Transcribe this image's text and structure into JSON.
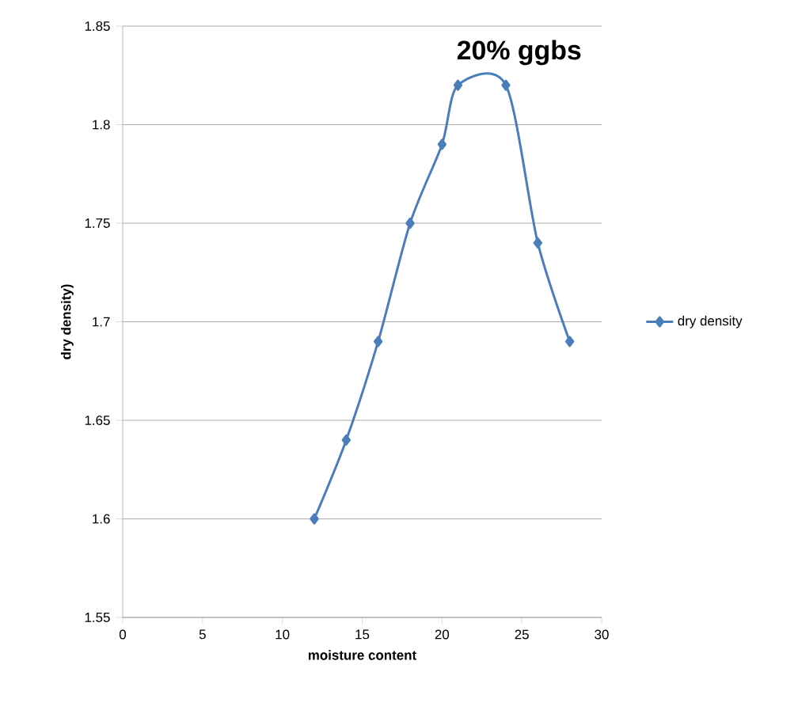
{
  "chart_data": {
    "type": "line",
    "title": "20% ggbs",
    "xlabel": "moisture content",
    "ylabel": "dry density)",
    "x": [
      12,
      14,
      16,
      18,
      20,
      21,
      24,
      26,
      28
    ],
    "series": [
      {
        "name": "dry density",
        "color": "#4a7ebb",
        "values": [
          1.6,
          1.64,
          1.69,
          1.75,
          1.79,
          1.82,
          1.82,
          1.74,
          1.69
        ]
      }
    ],
    "xlim": [
      0,
      30
    ],
    "xticks": [
      0,
      5,
      10,
      15,
      20,
      25,
      30
    ],
    "ylim": [
      1.55,
      1.85
    ],
    "yticks": [
      1.55,
      1.6,
      1.65,
      1.7,
      1.75,
      1.8,
      1.85
    ],
    "grid": "y",
    "legend": "right",
    "marker": "diamond",
    "line_style": "solid"
  }
}
